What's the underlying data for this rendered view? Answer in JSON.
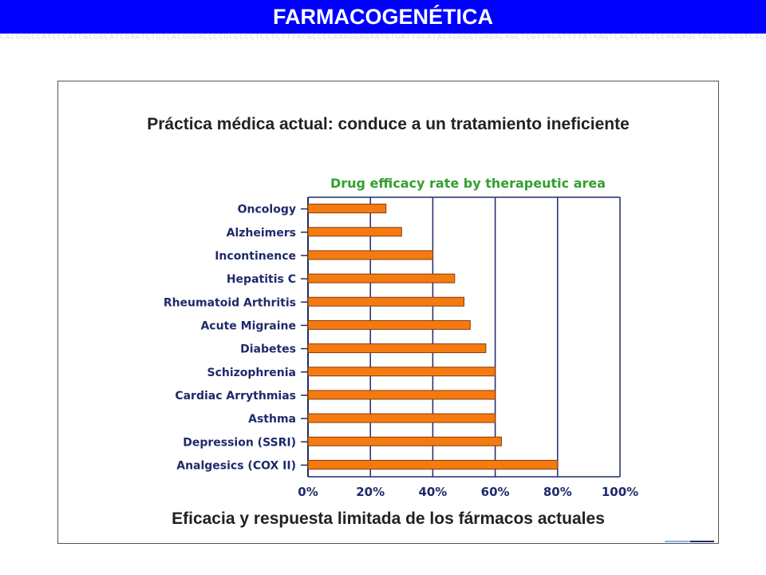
{
  "header": {
    "title": "FARMACOGENÉTICA"
  },
  "panel": {
    "heading": "Práctica médica actual: conduce a un tratamiento ineficiente",
    "caption": "Eficacia y respuesta limitada de los fármacos actuales"
  },
  "colors": {
    "title_bar": "#0000ff",
    "bar_fill": "#f47a12",
    "bar_stroke": "#8a3a00",
    "grid": "#1f2a6b",
    "chart_title": "#33a02c",
    "label_text": "#1f2a6b"
  },
  "chart_data": {
    "type": "bar",
    "orientation": "horizontal",
    "title": "Drug efficacy rate by therapeutic area",
    "categories": [
      "Oncology",
      "Alzheimers",
      "Incontinence",
      "Hepatitis C",
      "Rheumatoid Arthritis",
      "Acute Migraine",
      "Diabetes",
      "Schizophrenia",
      "Cardiac Arrythmias",
      "Asthma",
      "Depression (SSRI)",
      "Analgesics (COX II)"
    ],
    "values": [
      25,
      30,
      40,
      47,
      50,
      52,
      57,
      60,
      60,
      60,
      62,
      80
    ],
    "xlim": [
      0,
      100
    ],
    "xticks": [
      "0%",
      "20%",
      "40%",
      "60%",
      "80%",
      "100%"
    ],
    "grid": true,
    "xlabel": "",
    "ylabel": ""
  }
}
